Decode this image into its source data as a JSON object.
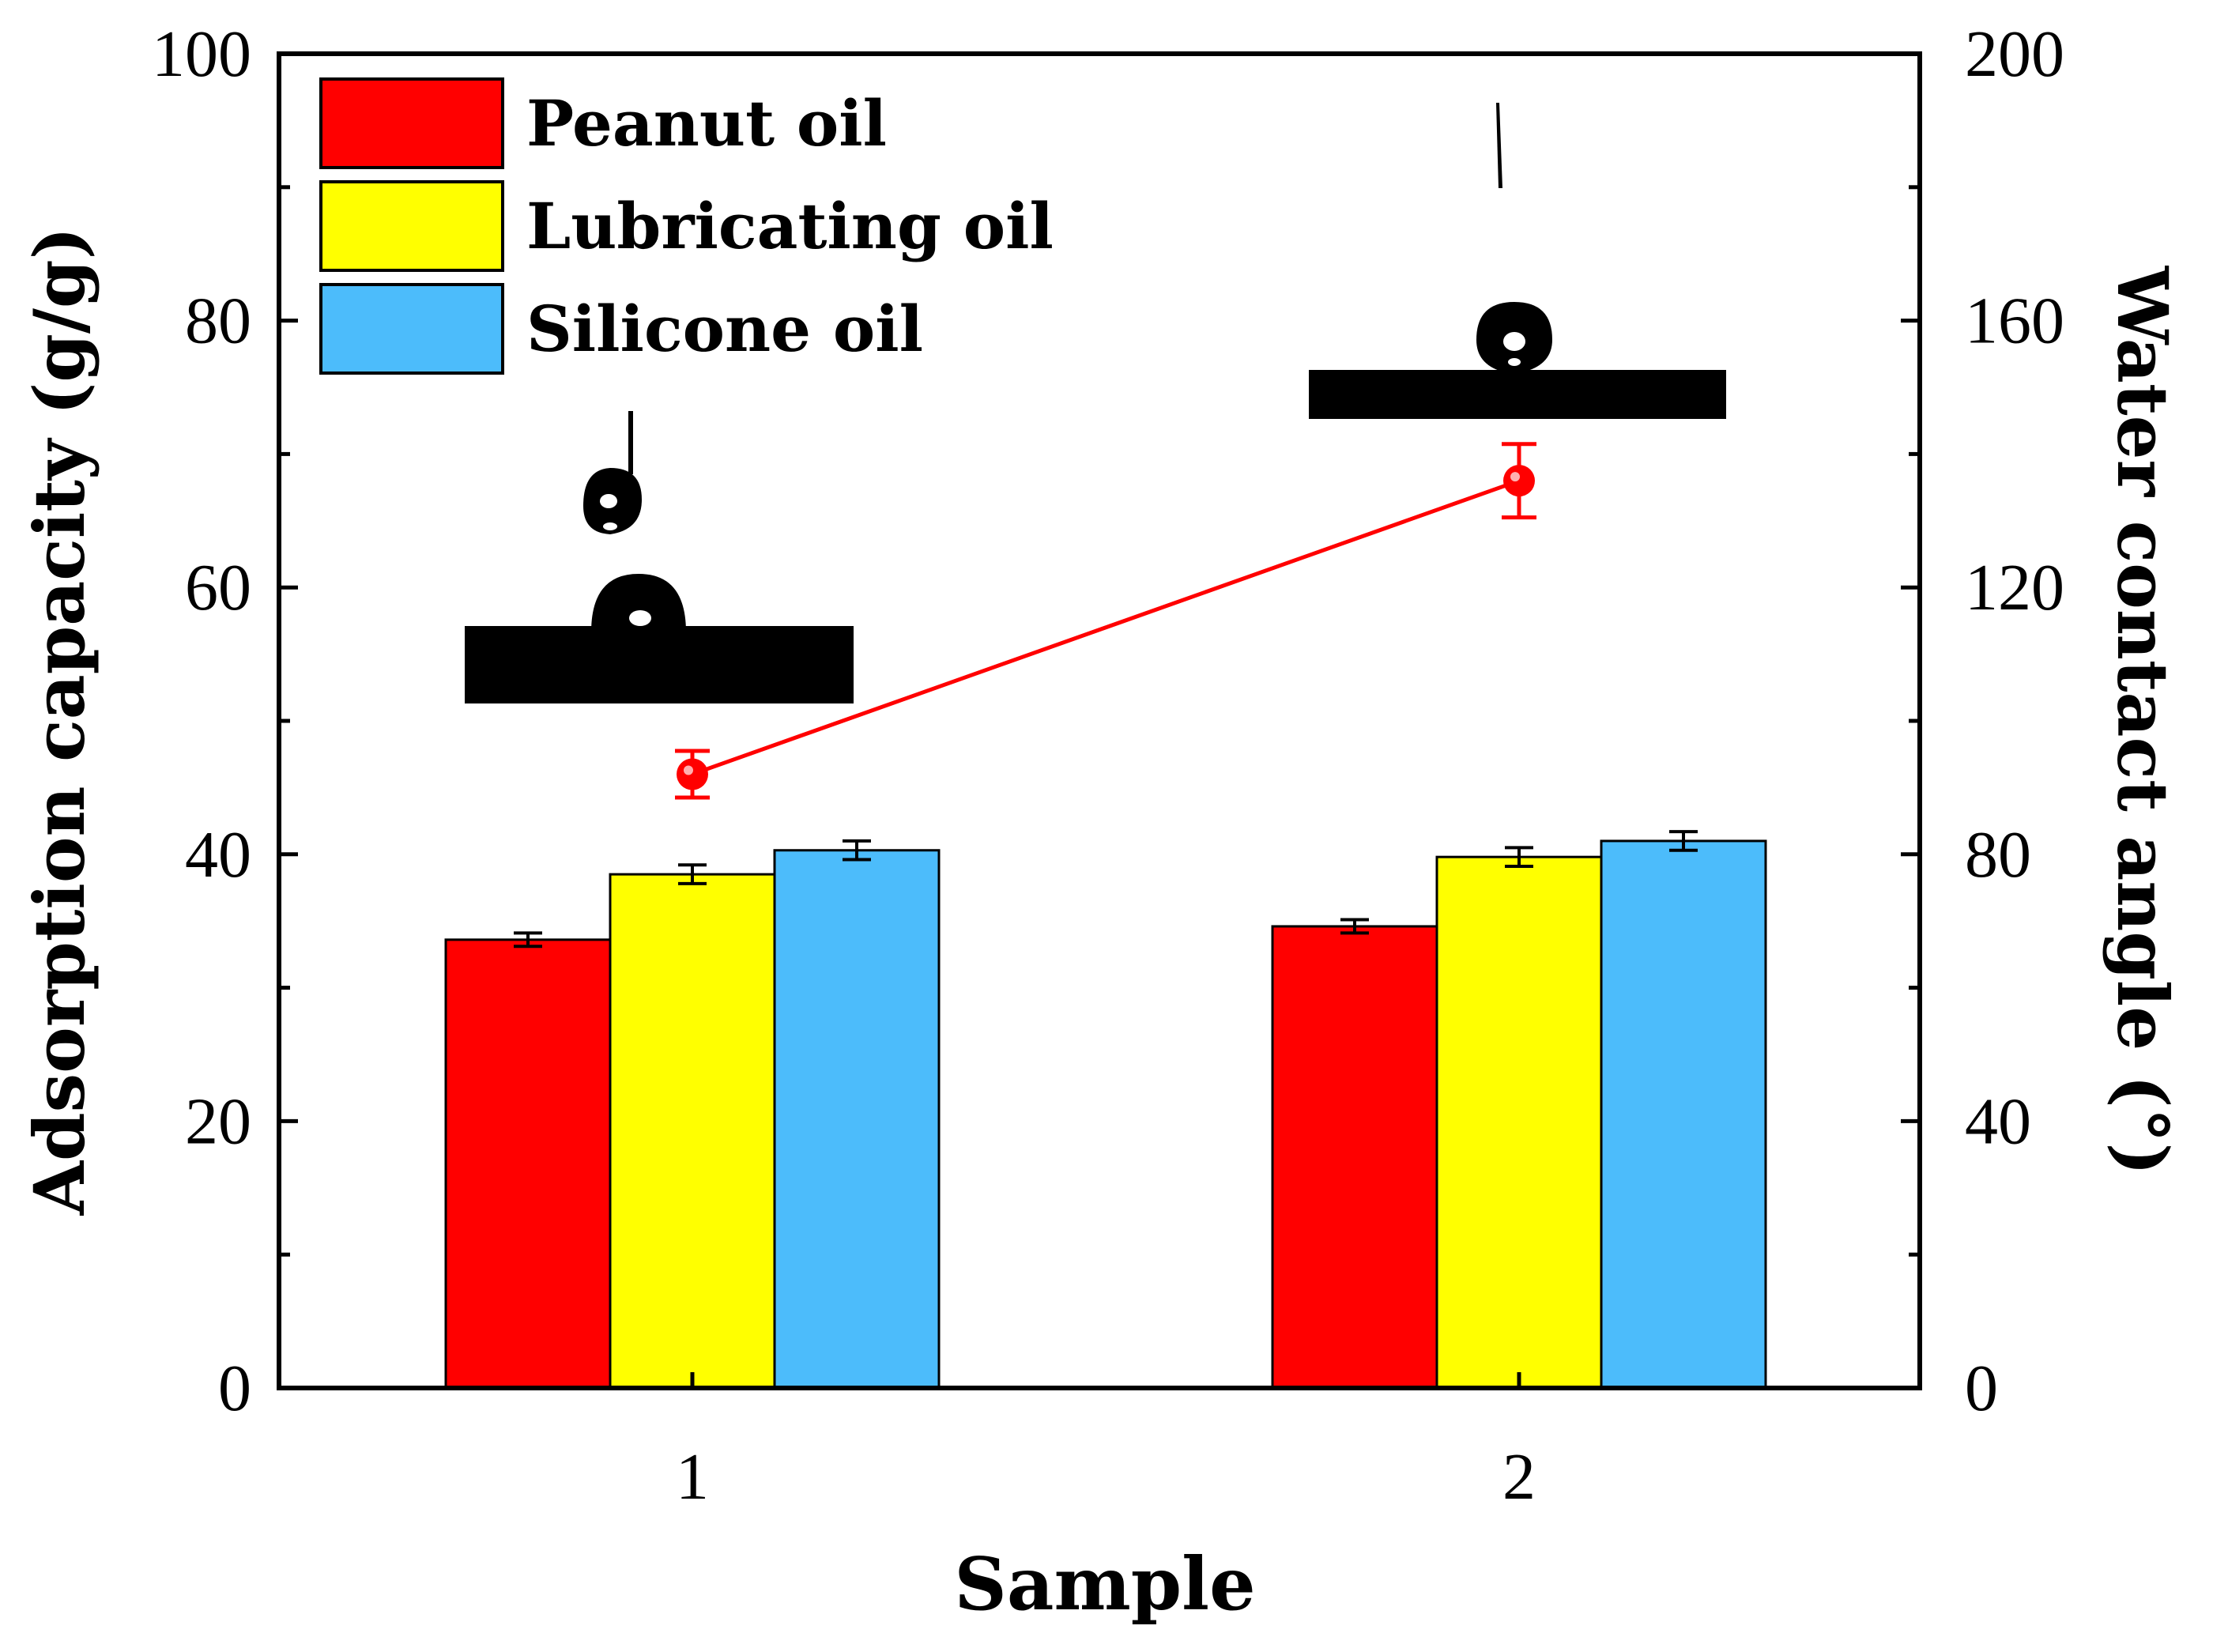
{
  "chart_data": {
    "type": "bar",
    "xlabel": "Sample",
    "ylabel": "Adsorption capacity (g/g)",
    "y2label": "Water contact angle (°)",
    "categories": [
      "1",
      "2"
    ],
    "ylim": [
      0,
      100
    ],
    "yticks": [
      0,
      20,
      40,
      60,
      80,
      100
    ],
    "y2lim": [
      0,
      200
    ],
    "y2ticks": [
      0,
      40,
      80,
      120,
      160,
      200
    ],
    "series": [
      {
        "name": "Peanut oil",
        "color": "#ff0000",
        "values": [
          33.6,
          34.6
        ],
        "errors": [
          0.5,
          0.5
        ]
      },
      {
        "name": "Lubricating oil",
        "color": "#ffff00",
        "values": [
          38.5,
          39.8
        ],
        "errors": [
          0.7,
          0.7
        ]
      },
      {
        "name": "Silicone oil",
        "color": "#4cbcfb",
        "values": [
          40.3,
          41.0
        ],
        "errors": [
          0.7,
          0.7
        ]
      }
    ],
    "line_series": {
      "name": "Water contact angle",
      "axis": "right",
      "color": "#ff0000",
      "values": [
        92,
        136
      ],
      "errors": [
        3.5,
        5.5
      ]
    },
    "legend_position": "top-left",
    "grid": false
  }
}
